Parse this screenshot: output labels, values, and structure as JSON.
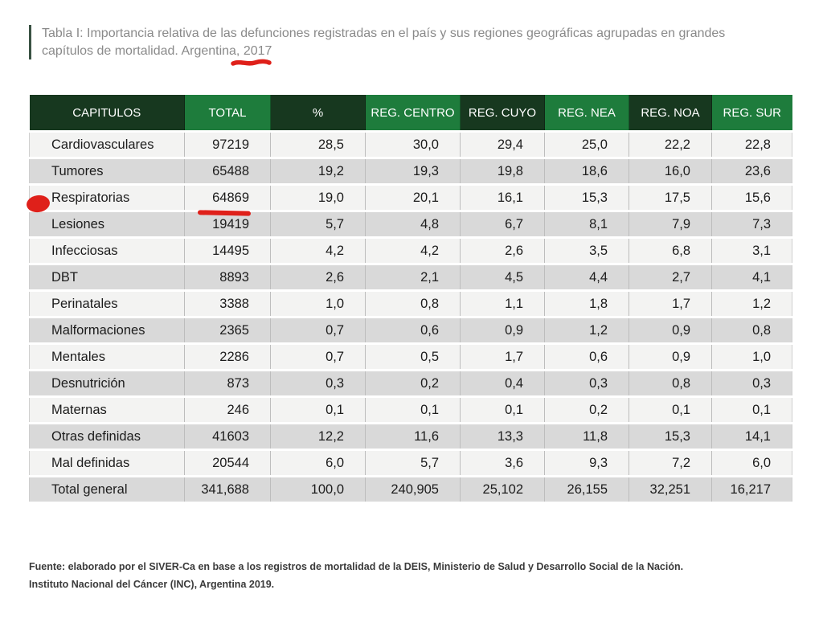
{
  "title": {
    "line1": "Tabla I: Importancia relativa de las defunciones registradas en el país y sus regiones geográficas agrupadas en grandes",
    "line2_prefix": "capítulos de mortalidad. Argentina, ",
    "year": "2017"
  },
  "table": {
    "columns": [
      "CAPITULOS",
      "TOTAL",
      "%",
      "REG. CENTRO",
      "REG. CUYO",
      "REG. NEA",
      "REG. NOA",
      "REG. SUR"
    ],
    "rows": [
      [
        "Cardiovasculares",
        "97219",
        "28,5",
        "30,0",
        "29,4",
        "25,0",
        "22,2",
        "22,8"
      ],
      [
        "Tumores",
        "65488",
        "19,2",
        "19,3",
        "19,8",
        "18,6",
        "16,0",
        "23,6"
      ],
      [
        "Respiratorias",
        "64869",
        "19,0",
        "20,1",
        "16,1",
        "15,3",
        "17,5",
        "15,6"
      ],
      [
        "Lesiones",
        "19419",
        "5,7",
        "4,8",
        "6,7",
        "8,1",
        "7,9",
        "7,3"
      ],
      [
        "Infecciosas",
        "14495",
        "4,2",
        "4,2",
        "2,6",
        "3,5",
        "6,8",
        "3,1"
      ],
      [
        "DBT",
        "8893",
        "2,6",
        "2,1",
        "4,5",
        "4,4",
        "2,7",
        "4,1"
      ],
      [
        "Perinatales",
        "3388",
        "1,0",
        "0,8",
        "1,1",
        "1,8",
        "1,7",
        "1,2"
      ],
      [
        "Malformaciones",
        "2365",
        "0,7",
        "0,6",
        "0,9",
        "1,2",
        "0,9",
        "0,8"
      ],
      [
        "Mentales",
        "2286",
        "0,7",
        "0,5",
        "1,7",
        "0,6",
        "0,9",
        "1,0"
      ],
      [
        "Desnutrición",
        "873",
        "0,3",
        "0,2",
        "0,4",
        "0,3",
        "0,8",
        "0,3"
      ],
      [
        "Maternas",
        "246",
        "0,1",
        "0,1",
        "0,1",
        "0,2",
        "0,1",
        "0,1"
      ],
      [
        "Otras definidas",
        "41603",
        "12,2",
        "11,6",
        "13,3",
        "11,8",
        "15,3",
        "14,1"
      ],
      [
        "Mal definidas",
        "20544",
        "6,0",
        "5,7",
        "3,6",
        "9,3",
        "7,2",
        "6,0"
      ],
      [
        "Total general",
        "341,688",
        "100,0",
        "240,905",
        "25,102",
        "26,155",
        "32,251",
        "16,217"
      ]
    ]
  },
  "annotations": {
    "red_circle_next_to_row": "Respiratorias",
    "red_underlined_value": "64869",
    "red_underlined_year": "2017",
    "annotation_color": "#df201a"
  },
  "colors": {
    "header_dark_green": "#17381f",
    "header_mid_green": "#1e7c3c",
    "row_light": "#f3f3f2",
    "row_shaded": "#d9d9d9",
    "title_text": "#8a8a8a",
    "accent_bar": "#3a5243",
    "footer_text": "#3b3b3b"
  },
  "footer": {
    "line1": "Fuente: elaborado por el SIVER-Ca en base a los registros de mortalidad de la DEIS, Ministerio de Salud y Desarrollo Social de la Nación.",
    "line2": "Instituto Nacional del Cáncer (INC), Argentina 2019."
  }
}
